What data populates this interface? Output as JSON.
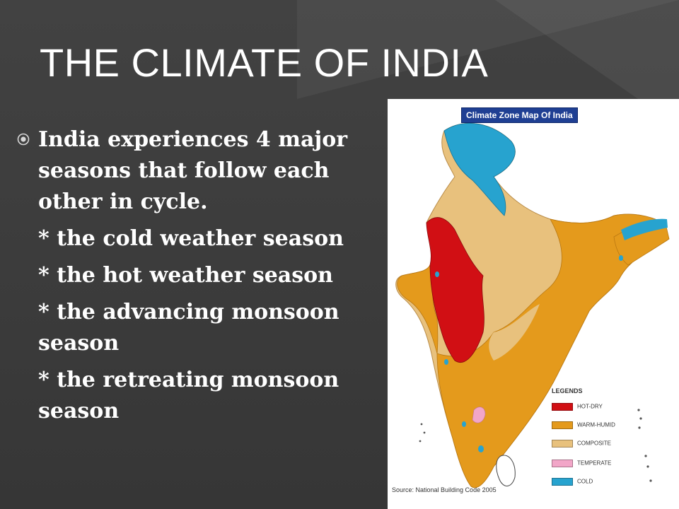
{
  "slide": {
    "title": "THE CLIMATE OF INDIA",
    "intro": "India experiences 4 major seasons that follow each other in cycle.",
    "seasons": [
      "* the cold weather season",
      "* the hot weather season",
      "* the advancing monsoon season",
      "* the retreating monsoon season"
    ]
  },
  "map": {
    "title": "Climate Zone Map Of India",
    "legend_title": "LEGENDS",
    "legend": [
      {
        "label": "HOT-DRY",
        "color": "#d10f14"
      },
      {
        "label": "WARM-HUMID",
        "color": "#e49a1c"
      },
      {
        "label": "COMPOSITE",
        "color": "#e8c17d"
      },
      {
        "label": "TEMPERATE",
        "color": "#f2a6c8"
      },
      {
        "label": "COLD",
        "color": "#27a3cf"
      }
    ],
    "source": "Source: National Building Code 2005"
  }
}
